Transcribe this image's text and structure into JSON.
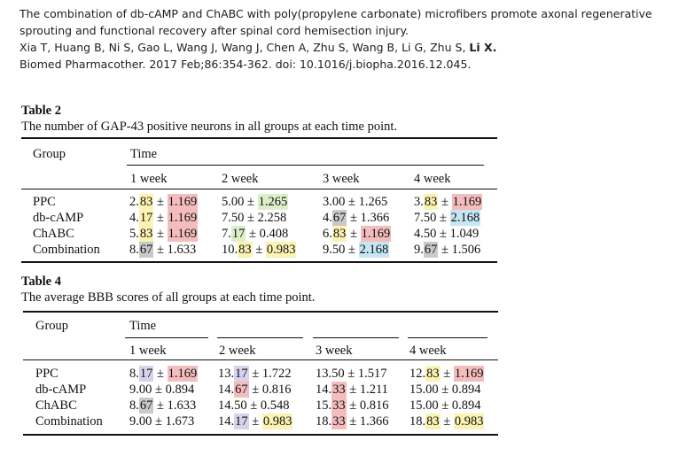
{
  "citation": {
    "line1": "The combination of db-cAMP and ChABC with poly(propylene carbonate) microfibers promote axonal regenerative",
    "line2": "sprouting and functional recovery after spinal cord hemisection injury.",
    "authors": "Xia T, Huang B, Ni S, Gao L, Wang J, Wang J, Chen A, Zhu S, Wang B, Li G, Zhu S,",
    "last_author": "Li X.",
    "journal": "Biomed Pharmacother. 2017 Feb;86:354-362.  doi: 10.1016/j.biopha.2016.12.045."
  },
  "table2": {
    "label": "Table 2",
    "title": "The number of GAP-43 positive neurons in all groups at each time point.",
    "group_header": "Group",
    "time_header": "Time",
    "columns": [
      "1 week",
      "2 week",
      "3 week",
      "4 week"
    ],
    "rows": [
      {
        "group": "PPC",
        "cells": [
          {
            "a": "2.",
            "b": "83",
            "c": " ± ",
            "d": "1.169"
          },
          {
            "a": "5.00",
            "b": "",
            "c": " ± ",
            "d": "1.265"
          },
          {
            "a": "3.00",
            "b": "",
            "c": " ± ",
            "d": "1.265"
          },
          {
            "a": "3.",
            "b": "83",
            "c": " ± ",
            "d": "1.169"
          }
        ]
      },
      {
        "group": "db-cAMP",
        "cells": [
          {
            "a": "4.",
            "b": "17",
            "c": " ± ",
            "d": "1.169"
          },
          {
            "a": "7.50",
            "b": "",
            "c": " ± ",
            "d": "2.258"
          },
          {
            "a": "4.",
            "b": "67",
            "c": " ± ",
            "d": "1.366"
          },
          {
            "a": "7.50",
            "b": "",
            "c": " ± ",
            "d": "2.168"
          }
        ]
      },
      {
        "group": "ChABC",
        "cells": [
          {
            "a": "5.",
            "b": "83",
            "c": " ± ",
            "d": "1.169"
          },
          {
            "a": "7.",
            "b": "17",
            "c": " ± ",
            "d": "0.408"
          },
          {
            "a": "6.",
            "b": "83",
            "c": " ± ",
            "d": "1.169"
          },
          {
            "a": "4.50",
            "b": "",
            "c": " ± ",
            "d": "1.049"
          }
        ]
      },
      {
        "group": "Combination",
        "cells": [
          {
            "a": "8.",
            "b": "67",
            "c": " ± ",
            "d": "1.633"
          },
          {
            "a": "10.",
            "b": "83",
            "c": " ± ",
            "d": "0.983"
          },
          {
            "a": "9.50",
            "b": "",
            "c": " ± ",
            "d": "2.168"
          },
          {
            "a": "9.",
            "b": "67",
            "c": " ± ",
            "d": "1.506"
          }
        ]
      }
    ],
    "highlights": {
      "r0c0b": "#fbf2b3",
      "r0c0d": "#f4bcbc",
      "r0c1d": "#ddefc9",
      "r0c3b": "#fbf2b3",
      "r0c3d": "#f4bcbc",
      "r1c0b": "#fbf2b3",
      "r1c0d": "#f4bcbc",
      "r1c2b": "#c9c9c9",
      "r1c3d": "#c6e6f3",
      "r2c0b": "#fbf2b3",
      "r2c0d": "#f4bcbc",
      "r2c1b": "#ddefc9",
      "r2c2b": "#fbf2b3",
      "r2c2d": "#f4bcbc",
      "r3c0b": "#c9c9c9",
      "r3c1b": "#fbf2b3",
      "r3c1d": "#fbf2b3",
      "r3c2d": "#c6e6f3",
      "r3c3b": "#c9c9c9"
    }
  },
  "table4": {
    "label": "Table 4",
    "title": "The average BBB scores of all groups at each time point.",
    "group_header": "Group",
    "time_header": "Time",
    "columns": [
      "1 week",
      "2 week",
      "3 week",
      "4 week"
    ],
    "rows": [
      {
        "group": "PPC",
        "cells": [
          {
            "a": "8.",
            "b": "17",
            "c": " ± ",
            "d": "1.169"
          },
          {
            "a": "13.",
            "b": "17",
            "c": " ± ",
            "d": "1.722"
          },
          {
            "a": "13.50",
            "b": "",
            "c": " ± ",
            "d": "1.517"
          },
          {
            "a": "12.",
            "b": "83",
            "c": " ± ",
            "d": "1.169"
          }
        ]
      },
      {
        "group": "db-cAMP",
        "cells": [
          {
            "a": "9.00",
            "b": "",
            "c": " ± ",
            "d": "0.894"
          },
          {
            "a": "14.",
            "b": "67",
            "c": " ± ",
            "d": "0.816"
          },
          {
            "a": "14.",
            "b": "33",
            "c": " ± ",
            "d": "1.211"
          },
          {
            "a": "15.00",
            "b": "",
            "c": " ± ",
            "d": "0.894"
          }
        ]
      },
      {
        "group": "ChABC",
        "cells": [
          {
            "a": "8.",
            "b": "67",
            "c": " ± ",
            "d": "1.633"
          },
          {
            "a": "14.50",
            "b": "",
            "c": " ± ",
            "d": "0.548"
          },
          {
            "a": "15.",
            "b": "33",
            "c": " ± ",
            "d": "0.816"
          },
          {
            "a": "15.00",
            "b": "",
            "c": " ± ",
            "d": "0.894"
          }
        ]
      },
      {
        "group": "Combination",
        "cells": [
          {
            "a": "9.00",
            "b": "",
            "c": " ± ",
            "d": "1.673"
          },
          {
            "a": "14.",
            "b": "17",
            "c": " ± ",
            "d": "0.983"
          },
          {
            "a": "18.",
            "b": "33",
            "c": " ± ",
            "d": "1.366"
          },
          {
            "a": "18.",
            "b": "83",
            "c": " ± ",
            "d": "0.983"
          }
        ]
      }
    ],
    "highlights": {
      "r0c0b": "#d9d2ec",
      "r0c0d": "#f4bcbc",
      "r0c1b": "#d9d2ec",
      "r0c3b": "#fbf2b3",
      "r0c3d": "#f4bcbc",
      "r1c1b": "#f4bcbc",
      "r1c2b": "#f4bcbc",
      "r2c0b": "#c9c9c9",
      "r2c2b": "#f4bcbc",
      "r3c1b": "#d9d2ec",
      "r3c1d": "#fbf2b3",
      "r3c2b": "#f4bcbc",
      "r3c3b": "#fbf2b3",
      "r3c3d": "#fbf2b3"
    }
  }
}
